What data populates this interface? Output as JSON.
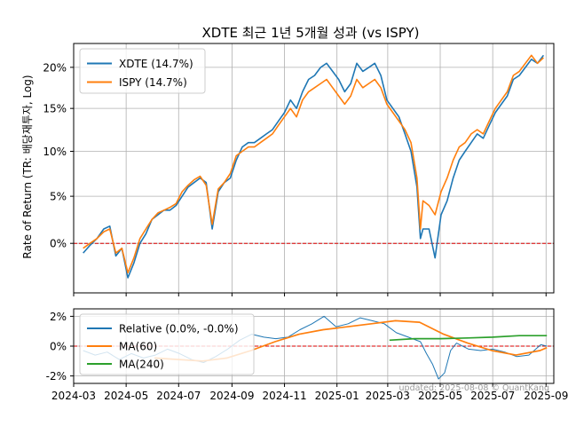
{
  "chart_data": [
    {
      "type": "line",
      "title": "XDTE 최근 1년 5개월 성과 (vs ISPY)",
      "ylabel": "Rate of Return (TR: 배당재투자, Log)",
      "yscale": "log-return",
      "ylim": [
        -5,
        23
      ],
      "yticks": [
        0,
        5,
        10,
        15,
        20
      ],
      "ytick_labels": [
        "0%",
        "5%",
        "10%",
        "15%",
        "20%"
      ],
      "xlim": [
        "2024-03-01",
        "2025-09-10"
      ],
      "grid": true,
      "legend_position": "upper-left",
      "reference_line": {
        "y": 0,
        "color": "#dd0000",
        "style": "dashed"
      },
      "series": [
        {
          "name": "XDTE (14.7%)",
          "color": "#1f77b4",
          "points": [
            [
              "2024-03-12",
              -1.0
            ],
            [
              "2024-03-20",
              -0.2
            ],
            [
              "2024-03-28",
              0.5
            ],
            [
              "2024-04-05",
              1.5
            ],
            [
              "2024-04-12",
              1.8
            ],
            [
              "2024-04-19",
              -1.3
            ],
            [
              "2024-04-26",
              -0.5
            ],
            [
              "2024-05-03",
              -3.5
            ],
            [
              "2024-05-10",
              -2.0
            ],
            [
              "2024-05-17",
              0.0
            ],
            [
              "2024-05-24",
              1.0
            ],
            [
              "2024-05-31",
              2.5
            ],
            [
              "2024-06-07",
              3.0
            ],
            [
              "2024-06-14",
              3.5
            ],
            [
              "2024-06-21",
              3.5
            ],
            [
              "2024-06-28",
              4.0
            ],
            [
              "2024-07-05",
              5.0
            ],
            [
              "2024-07-12",
              6.0
            ],
            [
              "2024-07-19",
              6.5
            ],
            [
              "2024-07-26",
              7.0
            ],
            [
              "2024-08-02",
              6.5
            ],
            [
              "2024-08-09",
              1.5
            ],
            [
              "2024-08-16",
              5.5
            ],
            [
              "2024-08-23",
              6.5
            ],
            [
              "2024-08-30",
              7.0
            ],
            [
              "2024-09-06",
              9.0
            ],
            [
              "2024-09-13",
              10.5
            ],
            [
              "2024-09-20",
              11.0
            ],
            [
              "2024-09-27",
              11.0
            ],
            [
              "2024-10-04",
              11.5
            ],
            [
              "2024-10-11",
              12.0
            ],
            [
              "2024-10-18",
              12.5
            ],
            [
              "2024-10-25",
              13.5
            ],
            [
              "2024-11-01",
              14.5
            ],
            [
              "2024-11-08",
              16.0
            ],
            [
              "2024-11-15",
              15.0
            ],
            [
              "2024-11-22",
              17.0
            ],
            [
              "2024-11-29",
              18.5
            ],
            [
              "2024-12-06",
              19.0
            ],
            [
              "2024-12-13",
              20.0
            ],
            [
              "2024-12-20",
              20.5
            ],
            [
              "2024-12-27",
              19.5
            ],
            [
              "2025-01-03",
              18.5
            ],
            [
              "2025-01-10",
              17.0
            ],
            [
              "2025-01-17",
              18.0
            ],
            [
              "2025-01-24",
              20.5
            ],
            [
              "2025-01-31",
              19.5
            ],
            [
              "2025-02-07",
              20.0
            ],
            [
              "2025-02-14",
              20.5
            ],
            [
              "2025-02-21",
              19.0
            ],
            [
              "2025-02-28",
              16.0
            ],
            [
              "2025-03-07",
              15.0
            ],
            [
              "2025-03-14",
              14.0
            ],
            [
              "2025-03-21",
              12.0
            ],
            [
              "2025-03-28",
              10.0
            ],
            [
              "2025-04-04",
              6.0
            ],
            [
              "2025-04-08",
              0.5
            ],
            [
              "2025-04-11",
              1.5
            ],
            [
              "2025-04-18",
              1.5
            ],
            [
              "2025-04-25",
              -1.5
            ],
            [
              "2025-05-02",
              3.0
            ],
            [
              "2025-05-09",
              4.5
            ],
            [
              "2025-05-16",
              7.0
            ],
            [
              "2025-05-23",
              9.0
            ],
            [
              "2025-05-30",
              10.0
            ],
            [
              "2025-06-06",
              11.0
            ],
            [
              "2025-06-13",
              12.0
            ],
            [
              "2025-06-20",
              11.5
            ],
            [
              "2025-06-27",
              13.0
            ],
            [
              "2025-07-04",
              14.5
            ],
            [
              "2025-07-11",
              15.5
            ],
            [
              "2025-07-18",
              16.5
            ],
            [
              "2025-07-25",
              18.5
            ],
            [
              "2025-08-01",
              19.0
            ],
            [
              "2025-08-08",
              20.0
            ],
            [
              "2025-08-15",
              21.0
            ],
            [
              "2025-08-22",
              20.5
            ],
            [
              "2025-08-29",
              21.5
            ]
          ]
        },
        {
          "name": "ISPY (14.7%)",
          "color": "#ff7f0e",
          "points": [
            [
              "2024-03-12",
              -0.5
            ],
            [
              "2024-03-20",
              0.0
            ],
            [
              "2024-03-28",
              0.5
            ],
            [
              "2024-04-05",
              1.2
            ],
            [
              "2024-04-12",
              1.5
            ],
            [
              "2024-04-19",
              -1.0
            ],
            [
              "2024-04-26",
              -0.5
            ],
            [
              "2024-05-03",
              -3.0
            ],
            [
              "2024-05-10",
              -1.5
            ],
            [
              "2024-05-17",
              0.5
            ],
            [
              "2024-05-24",
              1.5
            ],
            [
              "2024-05-31",
              2.5
            ],
            [
              "2024-06-07",
              3.2
            ],
            [
              "2024-06-14",
              3.5
            ],
            [
              "2024-06-21",
              3.8
            ],
            [
              "2024-06-28",
              4.2
            ],
            [
              "2024-07-05",
              5.5
            ],
            [
              "2024-07-12",
              6.2
            ],
            [
              "2024-07-19",
              6.8
            ],
            [
              "2024-07-26",
              7.2
            ],
            [
              "2024-08-02",
              6.2
            ],
            [
              "2024-08-09",
              2.0
            ],
            [
              "2024-08-16",
              5.8
            ],
            [
              "2024-08-23",
              6.5
            ],
            [
              "2024-08-30",
              7.5
            ],
            [
              "2024-09-06",
              9.5
            ],
            [
              "2024-09-13",
              10.0
            ],
            [
              "2024-09-20",
              10.5
            ],
            [
              "2024-09-27",
              10.5
            ],
            [
              "2024-10-04",
              11.0
            ],
            [
              "2024-10-11",
              11.5
            ],
            [
              "2024-10-18",
              12.0
            ],
            [
              "2024-10-25",
              13.0
            ],
            [
              "2024-11-01",
              14.0
            ],
            [
              "2024-11-08",
              15.0
            ],
            [
              "2024-11-15",
              14.0
            ],
            [
              "2024-11-22",
              16.0
            ],
            [
              "2024-11-29",
              17.0
            ],
            [
              "2024-12-06",
              17.5
            ],
            [
              "2024-12-13",
              18.0
            ],
            [
              "2024-12-20",
              18.5
            ],
            [
              "2024-12-27",
              17.5
            ],
            [
              "2025-01-03",
              16.5
            ],
            [
              "2025-01-10",
              15.5
            ],
            [
              "2025-01-17",
              16.5
            ],
            [
              "2025-01-24",
              18.5
            ],
            [
              "2025-01-31",
              17.5
            ],
            [
              "2025-02-07",
              18.0
            ],
            [
              "2025-02-14",
              18.5
            ],
            [
              "2025-02-21",
              17.5
            ],
            [
              "2025-02-28",
              15.5
            ],
            [
              "2025-03-07",
              14.5
            ],
            [
              "2025-03-14",
              13.5
            ],
            [
              "2025-03-21",
              12.5
            ],
            [
              "2025-03-28",
              11.0
            ],
            [
              "2025-04-04",
              7.0
            ],
            [
              "2025-04-08",
              1.5
            ],
            [
              "2025-04-11",
              4.5
            ],
            [
              "2025-04-18",
              4.0
            ],
            [
              "2025-04-25",
              3.0
            ],
            [
              "2025-05-02",
              5.5
            ],
            [
              "2025-05-09",
              7.0
            ],
            [
              "2025-05-16",
              9.0
            ],
            [
              "2025-05-23",
              10.5
            ],
            [
              "2025-05-30",
              11.0
            ],
            [
              "2025-06-06",
              12.0
            ],
            [
              "2025-06-13",
              12.5
            ],
            [
              "2025-06-20",
              12.0
            ],
            [
              "2025-06-27",
              13.5
            ],
            [
              "2025-07-04",
              15.0
            ],
            [
              "2025-07-11",
              16.0
            ],
            [
              "2025-07-18",
              17.0
            ],
            [
              "2025-07-25",
              19.0
            ],
            [
              "2025-08-01",
              19.5
            ],
            [
              "2025-08-08",
              20.5
            ],
            [
              "2025-08-15",
              21.5
            ],
            [
              "2025-08-22",
              20.5
            ],
            [
              "2025-08-29",
              21.2
            ]
          ]
        }
      ]
    },
    {
      "type": "line",
      "ylim": [
        -2.5,
        2.5
      ],
      "yticks": [
        -2,
        0,
        2
      ],
      "ytick_labels": [
        "-2%",
        "0%",
        "2%"
      ],
      "xlim": [
        "2024-03-01",
        "2025-09-10"
      ],
      "xticks": [
        "2024-03-01",
        "2024-05-01",
        "2024-07-01",
        "2024-09-01",
        "2024-11-01",
        "2025-01-01",
        "2025-03-01",
        "2025-05-01",
        "2025-07-01",
        "2025-09-01"
      ],
      "xtick_labels": [
        "2024-03",
        "2024-05",
        "2024-07",
        "2024-09",
        "2024-11",
        "2025-01",
        "2025-03",
        "2025-05",
        "2025-07",
        "2025-09"
      ],
      "grid": true,
      "legend_position": "upper-left",
      "reference_line": {
        "y": 0,
        "color": "#dd0000",
        "style": "dashed"
      },
      "annotation": "updated: 2025-08-08 © QuantKang",
      "series": [
        {
          "name": "Relative (0.0%, -0.0%)",
          "color": "#1f77b4",
          "points": [
            [
              "2024-03-12",
              -0.3
            ],
            [
              "2024-03-26",
              -0.6
            ],
            [
              "2024-04-09",
              -0.4
            ],
            [
              "2024-04-23",
              -0.9
            ],
            [
              "2024-05-07",
              -0.5
            ],
            [
              "2024-05-21",
              -0.8
            ],
            [
              "2024-06-04",
              -0.6
            ],
            [
              "2024-06-18",
              -0.2
            ],
            [
              "2024-07-02",
              -0.5
            ],
            [
              "2024-07-16",
              -0.9
            ],
            [
              "2024-07-30",
              -1.1
            ],
            [
              "2024-08-13",
              -0.7
            ],
            [
              "2024-08-27",
              -0.2
            ],
            [
              "2024-09-10",
              0.4
            ],
            [
              "2024-09-24",
              0.8
            ],
            [
              "2024-10-08",
              0.6
            ],
            [
              "2024-10-22",
              0.5
            ],
            [
              "2024-11-05",
              0.6
            ],
            [
              "2024-11-19",
              1.1
            ],
            [
              "2024-12-03",
              1.5
            ],
            [
              "2024-12-17",
              2.0
            ],
            [
              "2024-12-31",
              1.3
            ],
            [
              "2025-01-14",
              1.5
            ],
            [
              "2025-01-28",
              1.9
            ],
            [
              "2025-02-11",
              1.7
            ],
            [
              "2025-02-25",
              1.5
            ],
            [
              "2025-03-11",
              0.9
            ],
            [
              "2025-03-25",
              0.6
            ],
            [
              "2025-04-08",
              0.3
            ],
            [
              "2025-04-15",
              -0.5
            ],
            [
              "2025-04-22",
              -1.2
            ],
            [
              "2025-04-29",
              -2.2
            ],
            [
              "2025-05-06",
              -1.8
            ],
            [
              "2025-05-13",
              -0.3
            ],
            [
              "2025-05-20",
              0.2
            ],
            [
              "2025-06-03",
              -0.2
            ],
            [
              "2025-06-17",
              -0.3
            ],
            [
              "2025-07-01",
              -0.2
            ],
            [
              "2025-07-15",
              -0.4
            ],
            [
              "2025-07-29",
              -0.7
            ],
            [
              "2025-08-12",
              -0.6
            ],
            [
              "2025-08-26",
              0.1
            ],
            [
              "2025-09-02",
              0.0
            ]
          ]
        },
        {
          "name": "MA(60)",
          "color": "#ff7f0e",
          "points": [
            [
              "2024-06-03",
              -0.8
            ],
            [
              "2024-07-01",
              -0.9
            ],
            [
              "2024-07-29",
              -1.0
            ],
            [
              "2024-08-26",
              -0.8
            ],
            [
              "2024-09-23",
              -0.3
            ],
            [
              "2024-10-21",
              0.3
            ],
            [
              "2024-11-18",
              0.8
            ],
            [
              "2024-12-16",
              1.1
            ],
            [
              "2025-01-13",
              1.3
            ],
            [
              "2025-02-10",
              1.5
            ],
            [
              "2025-03-10",
              1.7
            ],
            [
              "2025-04-07",
              1.6
            ],
            [
              "2025-05-05",
              0.8
            ],
            [
              "2025-06-02",
              0.2
            ],
            [
              "2025-06-30",
              -0.3
            ],
            [
              "2025-07-28",
              -0.6
            ],
            [
              "2025-08-25",
              -0.3
            ],
            [
              "2025-09-02",
              -0.1
            ]
          ]
        },
        {
          "name": "MA(240)",
          "color": "#2ca02c",
          "points": [
            [
              "2025-03-03",
              0.4
            ],
            [
              "2025-04-01",
              0.5
            ],
            [
              "2025-05-01",
              0.5
            ],
            [
              "2025-06-02",
              0.55
            ],
            [
              "2025-07-01",
              0.6
            ],
            [
              "2025-08-01",
              0.7
            ],
            [
              "2025-09-02",
              0.7
            ]
          ]
        }
      ]
    }
  ]
}
